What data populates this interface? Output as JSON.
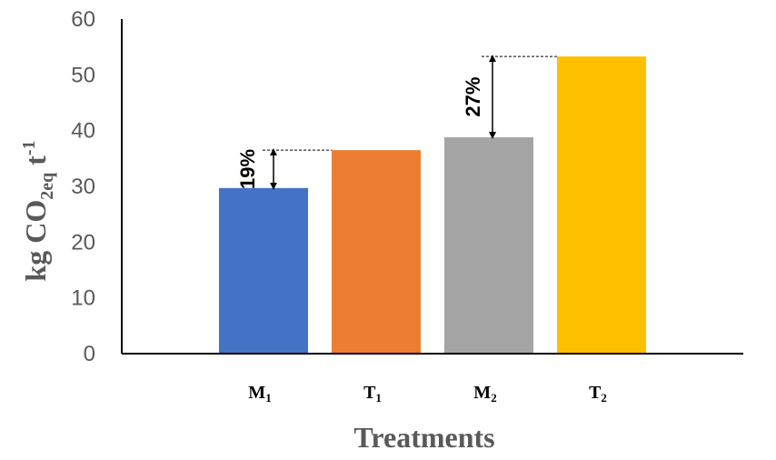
{
  "chart_data": {
    "type": "bar",
    "title": "",
    "xlabel": "Treatments",
    "ylabel": {
      "main": "kg CO",
      "sub": "2eq",
      "unit": " t",
      "sup": "-1"
    },
    "categories": [
      {
        "base": "M",
        "sub": "1"
      },
      {
        "base": "T",
        "sub": "1"
      },
      {
        "base": "M",
        "sub": "2"
      },
      {
        "base": "T",
        "sub": "2"
      }
    ],
    "category_labels": [
      "M1",
      "T1",
      "M2",
      "T2"
    ],
    "values": [
      29.7,
      36.5,
      38.8,
      53.3
    ],
    "colors": [
      "#4472C4",
      "#ED7D31",
      "#A5A5A5",
      "#FFC000"
    ],
    "ylim": [
      0,
      60
    ],
    "yticks": [
      0,
      10,
      20,
      30,
      40,
      50,
      60
    ],
    "grid": false,
    "legend": "none",
    "annotations": [
      {
        "label": "19%",
        "from_category": 0,
        "to_category": 1
      },
      {
        "label": "27%",
        "from_category": 2,
        "to_category": 3
      }
    ]
  }
}
